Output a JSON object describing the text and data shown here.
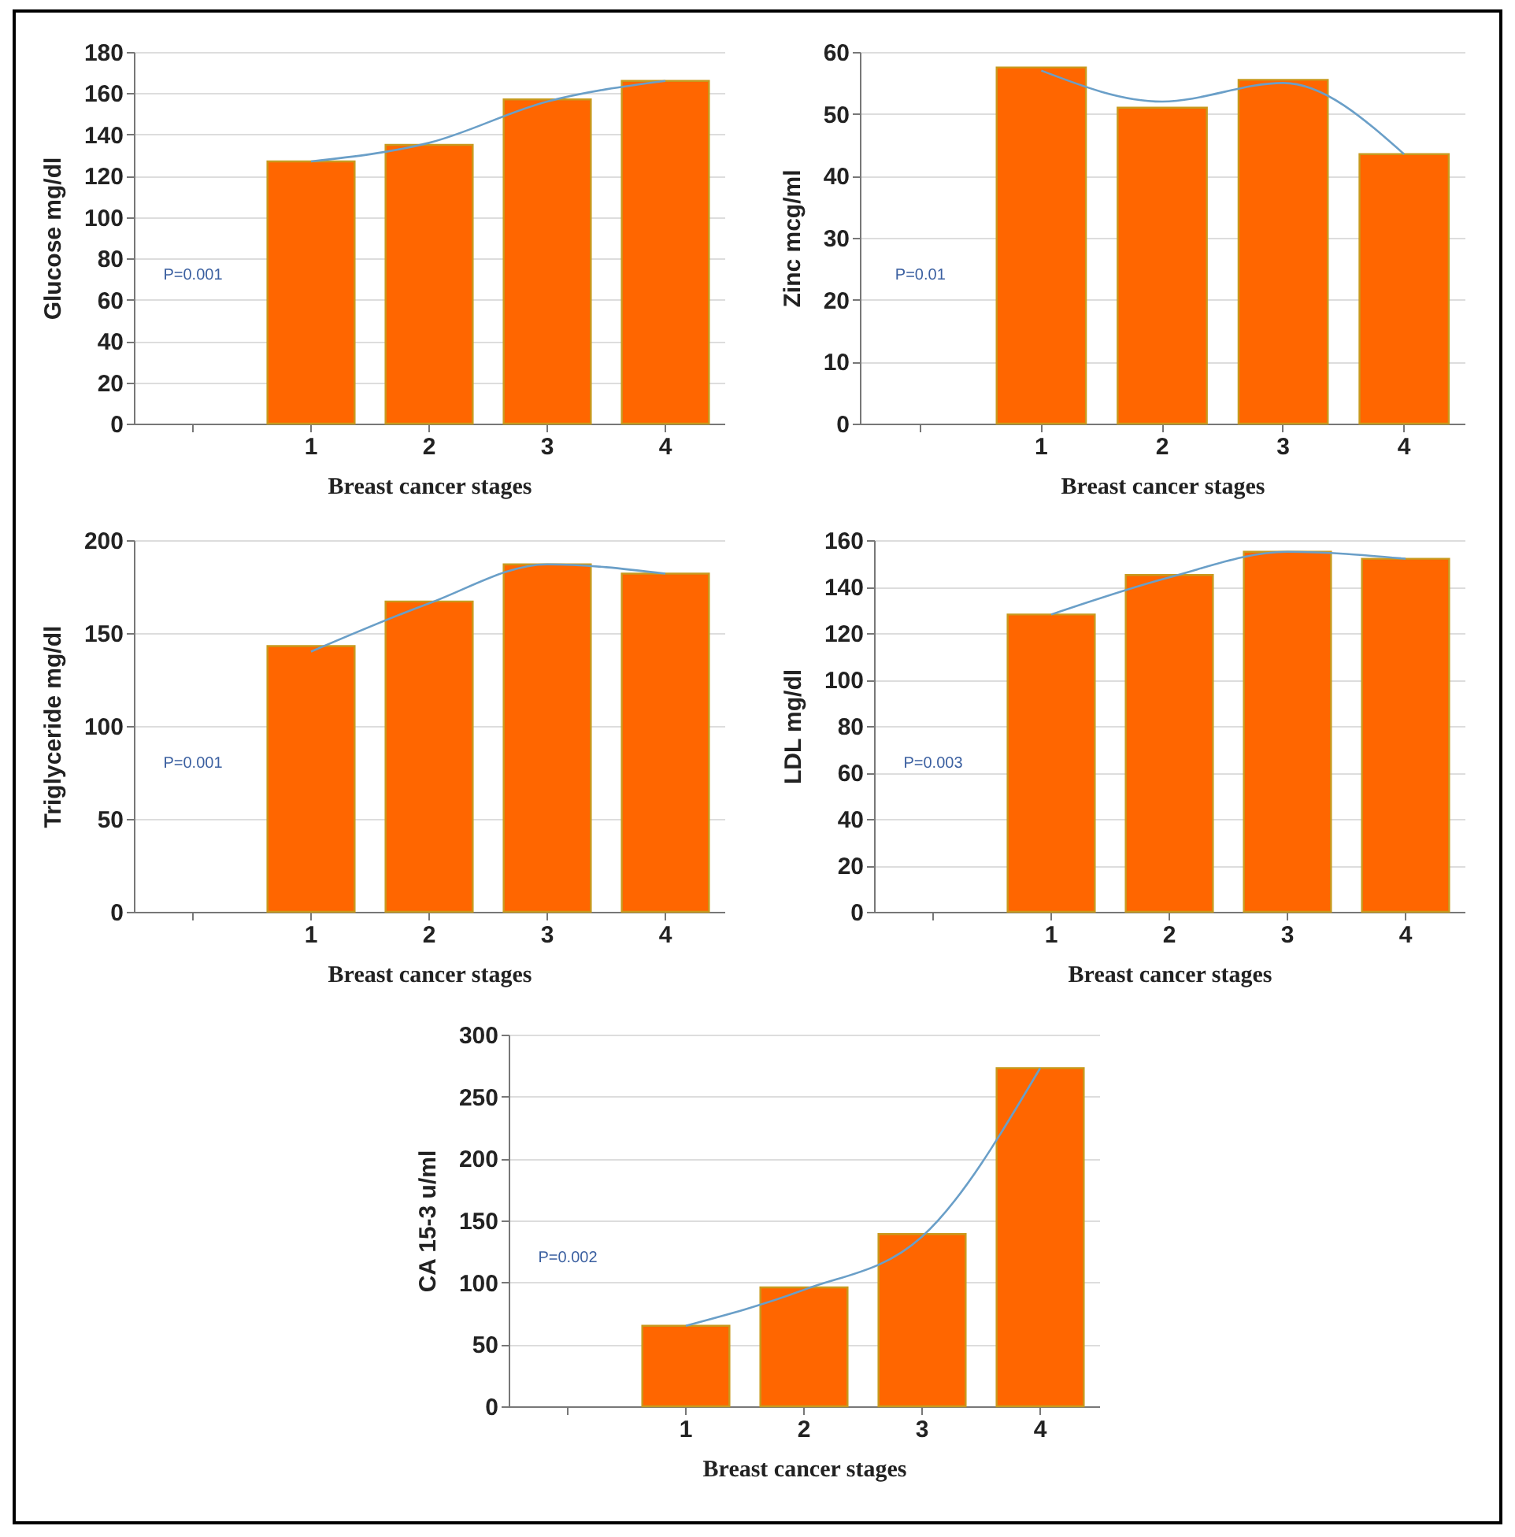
{
  "chart_data": [
    {
      "type": "bar",
      "categories": [
        null,
        "1",
        "2",
        "3",
        "4"
      ],
      "xlabel": "Breast cancer stages",
      "ylabel": "Glucose mg/dl",
      "ylim": [
        0,
        180
      ],
      "yticks": [
        0,
        20,
        40,
        60,
        80,
        100,
        120,
        140,
        160,
        180
      ],
      "grid": "y",
      "annotations": [
        "P=0.001"
      ],
      "series": [
        {
          "color": "#ff6600",
          "values": [
            null,
            127,
            135,
            157,
            166
          ]
        },
        {
          "type": "line",
          "color": "#6a9fc8",
          "values": [
            null,
            127,
            136,
            156,
            166
          ]
        }
      ]
    },
    {
      "type": "bar",
      "categories": [
        null,
        "1",
        "2",
        "3",
        "4"
      ],
      "xlabel": "Breast cancer stages",
      "ylabel": "Zinc mcg/ml",
      "ylim": [
        0,
        60
      ],
      "yticks": [
        0,
        10,
        20,
        30,
        40,
        50,
        60
      ],
      "grid": "y",
      "annotations": [
        "P=0.01"
      ],
      "series": [
        {
          "color": "#ff6600",
          "values": [
            null,
            57.5,
            51,
            55.5,
            43.5
          ]
        },
        {
          "type": "line",
          "color": "#6a9fc8",
          "values": [
            null,
            57,
            52,
            55,
            43.5
          ]
        }
      ]
    },
    {
      "type": "bar",
      "categories": [
        null,
        "1",
        "2",
        "3",
        "4"
      ],
      "xlabel": "Breast cancer stages",
      "ylabel": "Triglyceride mg/dl",
      "ylim": [
        0,
        200
      ],
      "yticks": [
        0,
        50,
        100,
        150,
        200
      ],
      "grid": "y",
      "annotations": [
        "P=0.001"
      ],
      "series": [
        {
          "color": "#ff6600",
          "values": [
            null,
            143,
            167,
            187,
            182
          ]
        },
        {
          "type": "line",
          "color": "#6a9fc8",
          "values": [
            null,
            140,
            166,
            187,
            182
          ]
        }
      ]
    },
    {
      "type": "bar",
      "categories": [
        null,
        "1",
        "2",
        "3",
        "4"
      ],
      "xlabel": "Breast cancer stages",
      "ylabel": "LDL mg/dl",
      "ylim": [
        0,
        160
      ],
      "yticks": [
        0,
        20,
        40,
        60,
        80,
        100,
        120,
        140,
        160
      ],
      "grid": "y",
      "annotations": [
        "P=0.003"
      ],
      "series": [
        {
          "color": "#ff6600",
          "values": [
            null,
            128,
            145,
            155,
            152
          ]
        },
        {
          "type": "line",
          "color": "#6a9fc8",
          "values": [
            null,
            128,
            144,
            155,
            152
          ]
        }
      ]
    },
    {
      "type": "bar",
      "categories": [
        null,
        "1",
        "2",
        "3",
        "4"
      ],
      "xlabel": "Breast cancer stages",
      "ylabel": "CA 15-3 u/ml",
      "ylim": [
        0,
        300
      ],
      "yticks": [
        0,
        50,
        100,
        150,
        200,
        250,
        300
      ],
      "grid": "y",
      "annotations": [
        "P=0.002"
      ],
      "series": [
        {
          "color": "#ff6600",
          "values": [
            null,
            65,
            96,
            139,
            273
          ]
        },
        {
          "type": "line",
          "color": "#6a9fc8",
          "values": [
            null,
            65,
            94,
            137,
            273
          ]
        }
      ]
    }
  ]
}
